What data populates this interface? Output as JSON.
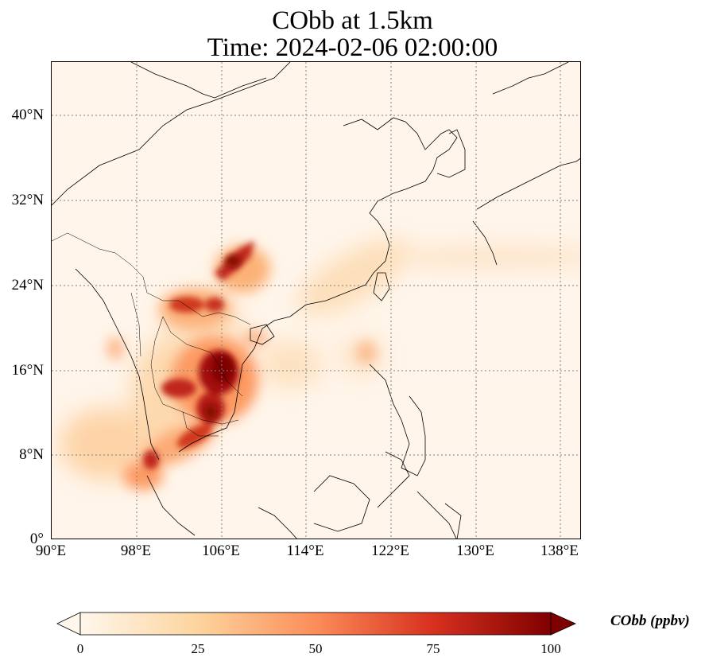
{
  "title_line1": "CObb at 1.5km",
  "title_line2": "Time: 2024-02-06 02:00:00",
  "lat_ticks": [
    "40°N",
    "32°N",
    "24°N",
    "16°N",
    "8°N",
    "0°"
  ],
  "lon_ticks": [
    "90°E",
    "98°E",
    "106°E",
    "114°E",
    "122°E",
    "130°E",
    "138°E"
  ],
  "colorbar": {
    "label": "CObb (ppbv)",
    "ticks": [
      "0",
      "25",
      "50",
      "75",
      "100"
    ],
    "colormap": "OrRd",
    "colors": [
      "#fff7ec",
      "#fdd49e",
      "#fc8d59",
      "#d7301f",
      "#7f0000"
    ],
    "range": [
      0,
      100
    ],
    "extend": "both"
  },
  "map": {
    "projection": "PlateCarree",
    "extent_lon": [
      90,
      140
    ],
    "extent_lat": [
      0,
      45
    ],
    "gridlines": "dotted"
  }
}
